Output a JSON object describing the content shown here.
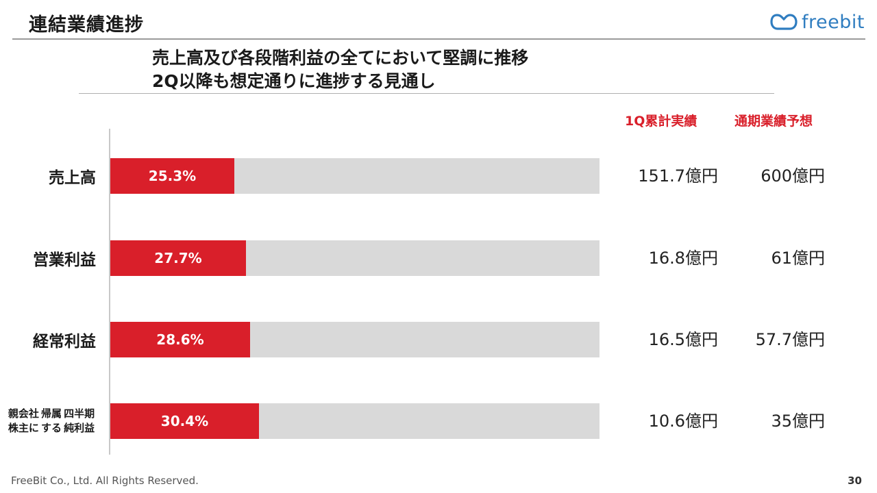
{
  "header": {
    "title": "連結業績進捗",
    "logo_text": "freebit"
  },
  "subtitle": {
    "line1": "売上高及び各段階利益の全てにおいて堅調に推移",
    "line2": "2Q以降も想定通りに進捗する見通し"
  },
  "columns": {
    "actual": "1Q累計実績",
    "forecast": "通期業績予想"
  },
  "chart_data": {
    "type": "bar",
    "orientation": "horizontal",
    "unit": "%",
    "xlim": [
      0,
      100
    ],
    "categories": [
      "売上高",
      "営業利益",
      "経常利益",
      "親会社株主に帰属する四半期純利益"
    ],
    "category_lines": [
      [
        "売上高"
      ],
      [
        "営業利益"
      ],
      [
        "経常利益"
      ],
      [
        "親会社株主に",
        "帰属する",
        "四半期純利益"
      ]
    ],
    "values": [
      25.3,
      27.7,
      28.6,
      30.4
    ],
    "value_labels": [
      "25.3%",
      "27.7%",
      "28.6%",
      "30.4%"
    ],
    "actual_labels": [
      "151.7億円",
      "16.8億円",
      "16.5億円",
      "10.6億円"
    ],
    "forecast_labels": [
      "600億円",
      "61億円",
      "57.7億円",
      "35億円"
    ],
    "fill_color": "#d91f2a",
    "track_color": "#d9d9d9"
  },
  "footer": {
    "copyright": "FreeBit Co., Ltd. All Rights Reserved.",
    "page": "30"
  }
}
